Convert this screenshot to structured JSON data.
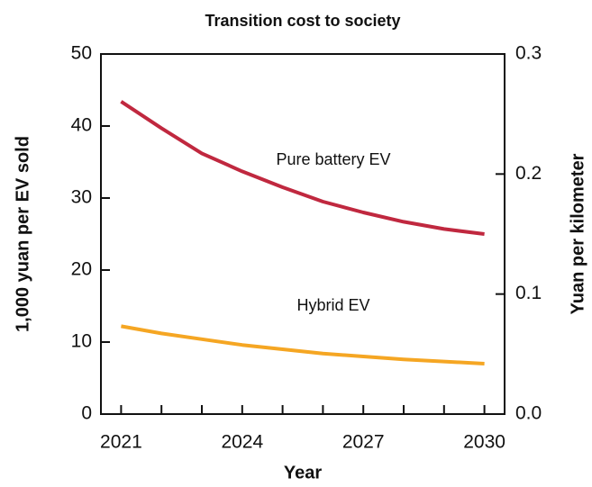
{
  "chart_data": {
    "type": "line",
    "title": "Transition cost to society",
    "xlabel": "Year",
    "ylabel": "1,000 yuan per EV sold",
    "y2label": "Yuan per kilometer",
    "x": [
      2021,
      2022,
      2023,
      2024,
      2025,
      2026,
      2027,
      2028,
      2029,
      2030
    ],
    "series": [
      {
        "name": "Pure battery EV",
        "color": "#c0283f",
        "values": [
          43.4,
          39.7,
          36.2,
          33.7,
          31.5,
          29.5,
          28,
          26.7,
          25.7,
          25
        ]
      },
      {
        "name": "Hybrid EV",
        "color": "#f5a623",
        "values": [
          12.2,
          11.2,
          10.4,
          9.6,
          9,
          8.4,
          8,
          7.6,
          7.3,
          7
        ]
      }
    ],
    "xlim": [
      2020.5,
      2030.5
    ],
    "xticks": [
      2021,
      2024,
      2027,
      2030
    ],
    "xminor_ticks": [
      2021,
      2022,
      2023,
      2024,
      2025,
      2026,
      2027,
      2028,
      2029,
      2030
    ],
    "ylim": [
      0,
      50
    ],
    "yticks": [
      0,
      10,
      20,
      30,
      40,
      50
    ],
    "y2lim": [
      0,
      0.3
    ],
    "y2ticks": [
      {
        "value": 0,
        "label": "0.0"
      },
      0.1,
      0.2,
      0.3
    ],
    "grid": false
  }
}
